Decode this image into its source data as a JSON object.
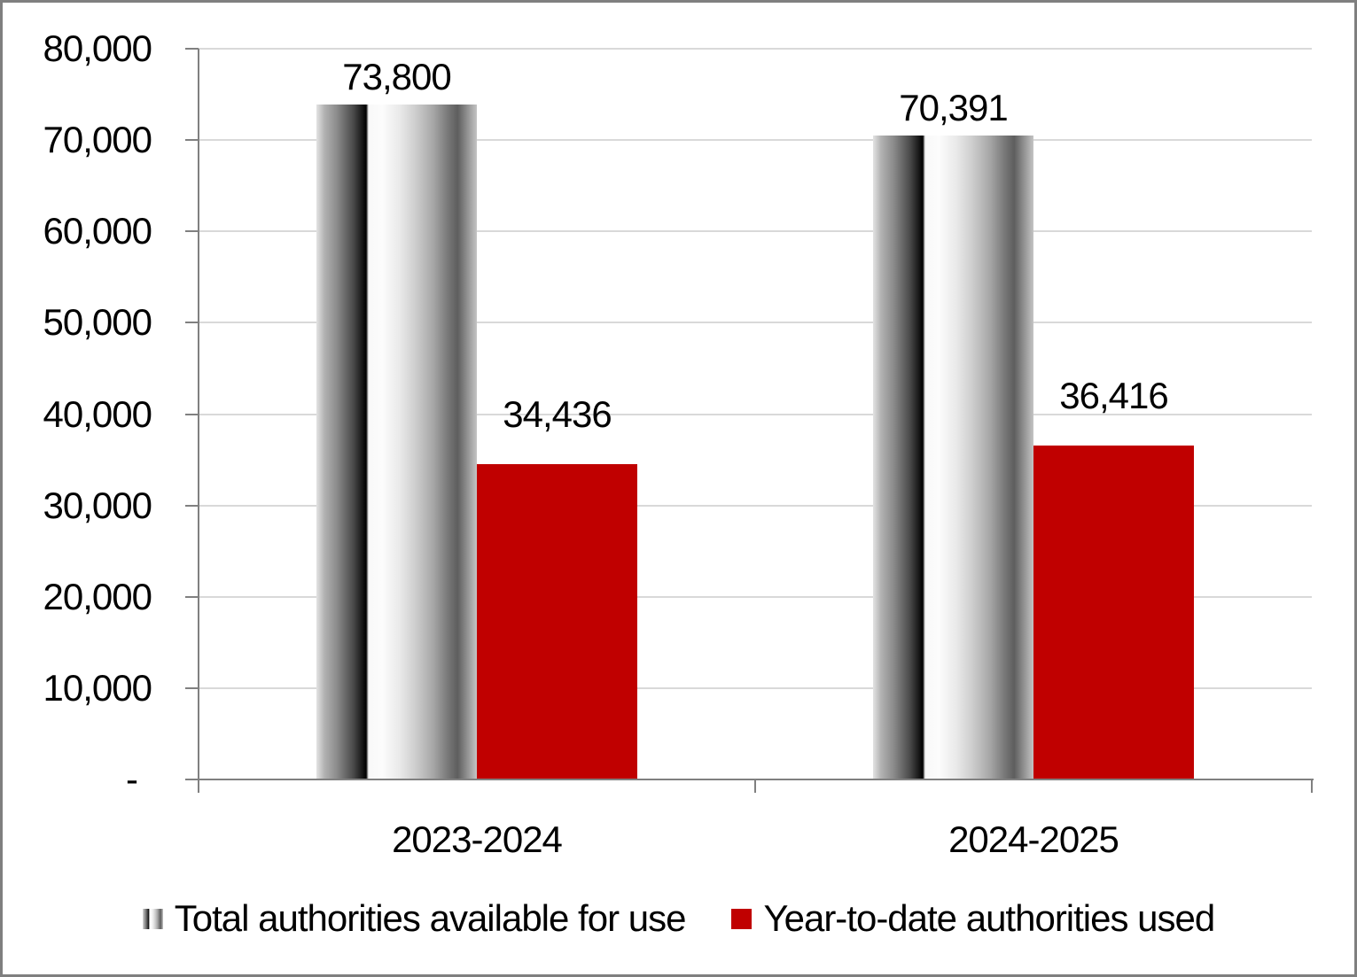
{
  "chart_data": {
    "type": "bar",
    "title": "",
    "xlabel": "",
    "ylabel": "",
    "categories": [
      "2023-2024",
      "2024-2025"
    ],
    "series": [
      {
        "name": "Total authorities available for use",
        "values": [
          73800,
          70391
        ],
        "labels": [
          "73,800",
          "70,391"
        ],
        "fill": "gray-cylinder-gradient"
      },
      {
        "name": "Year-to-date authorities used",
        "values": [
          34436,
          36416
        ],
        "labels": [
          "34,436",
          "36,416"
        ],
        "color": "#C00000"
      }
    ],
    "ylim": [
      0,
      80000
    ],
    "ytick_interval": 10000,
    "ytick_labels": [
      "-",
      "10,000",
      "20,000",
      "30,000",
      "40,000",
      "50,000",
      "60,000",
      "70,000",
      "80,000"
    ],
    "grid": true,
    "legend_position": "bottom",
    "axis_color": "#808080",
    "gridline_color": "#D9D9D9",
    "text_color": "#000000",
    "background_color": "#FFFFFF",
    "border_color": "#7F7F7F"
  }
}
